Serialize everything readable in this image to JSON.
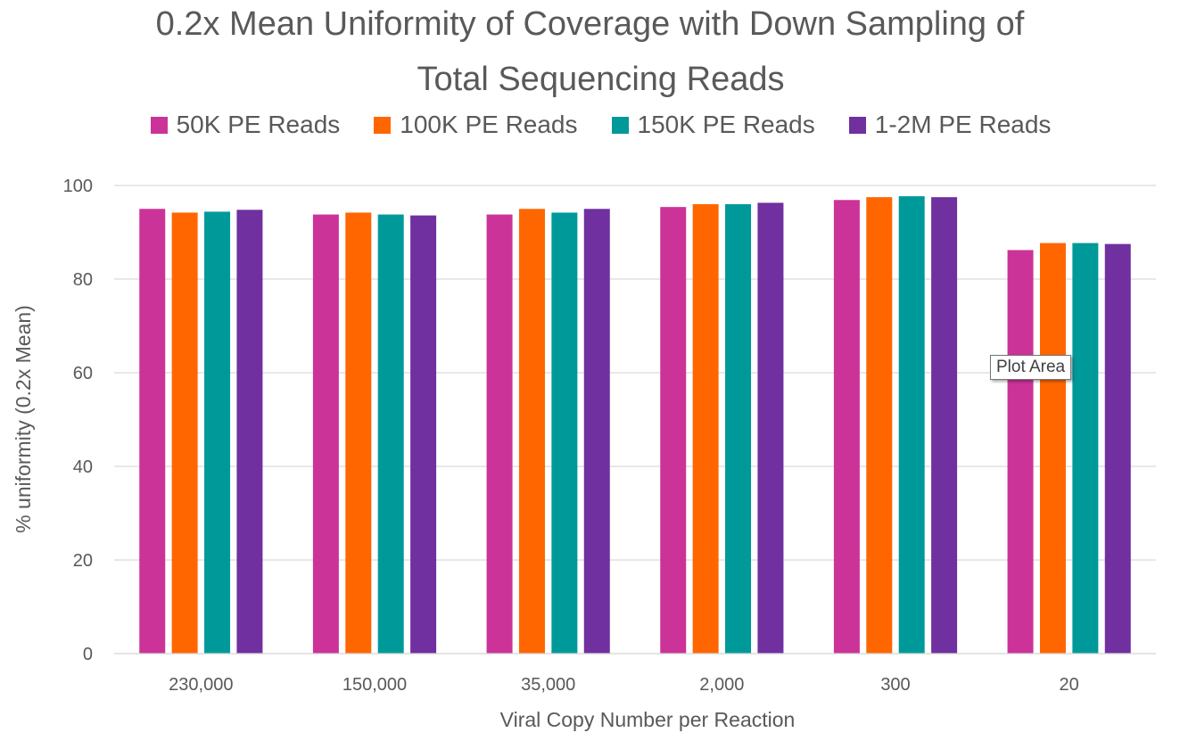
{
  "chart_data": {
    "type": "bar",
    "title_lines": [
      "0.2x Mean Uniformity of Coverage with Down Sampling of",
      "Total Sequencing Reads"
    ],
    "xlabel": "Viral Copy Number per Reaction",
    "ylabel": "% uniformity (0.2x Mean)",
    "categories": [
      "230,000",
      "150,000",
      "35,000",
      "2,000",
      "300",
      "20"
    ],
    "ylim": [
      0,
      100
    ],
    "yticks": [
      0,
      20,
      40,
      60,
      80,
      100
    ],
    "grid": true,
    "legend_position": "top",
    "series": [
      {
        "name": "50K PE Reads",
        "color": "#CC3399",
        "values": [
          95.0,
          93.8,
          93.8,
          95.4,
          96.9,
          86.2
        ]
      },
      {
        "name": "100K PE Reads",
        "color": "#FF6600",
        "values": [
          94.2,
          94.2,
          95.0,
          96.0,
          97.5,
          87.7
        ]
      },
      {
        "name": "150K PE Reads",
        "color": "#009999",
        "values": [
          94.4,
          93.8,
          94.2,
          96.0,
          97.7,
          87.7
        ]
      },
      {
        "name": "1-2M PE Reads",
        "color": "#7030A0",
        "values": [
          94.8,
          93.6,
          95.0,
          96.3,
          97.5,
          87.5
        ]
      }
    ]
  },
  "tooltip": {
    "text": "Plot Area"
  }
}
